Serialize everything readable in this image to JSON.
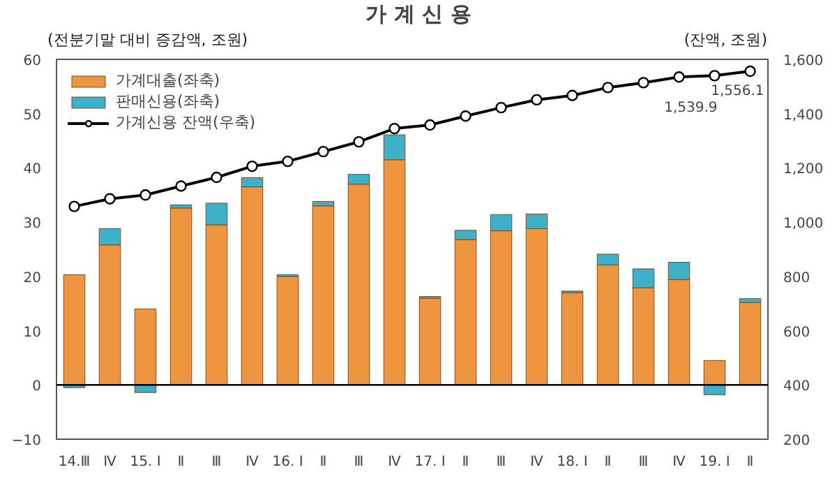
{
  "chart_data": {
    "type": "bar",
    "title": "가 계 신 용",
    "ylabel": "(전분기말 대비 증감액, 조원)",
    "y2label": "(잔액, 조원)",
    "categories": [
      "14.Ⅲ",
      "Ⅳ",
      "15. Ⅰ",
      "Ⅱ",
      "Ⅲ",
      "Ⅳ",
      "16. Ⅰ",
      "Ⅱ",
      "Ⅲ",
      "Ⅳ",
      "17. Ⅰ",
      "Ⅱ",
      "Ⅲ",
      "Ⅳ",
      "18. Ⅰ",
      "Ⅱ",
      "Ⅲ",
      "Ⅳ",
      "19. Ⅰ",
      "Ⅱ"
    ],
    "stacked": true,
    "series": [
      {
        "name": "가계대출(좌축)",
        "color": "#f0953f",
        "values": [
          20.3,
          25.8,
          14.0,
          32.6,
          29.5,
          36.5,
          20.0,
          33.0,
          37.0,
          41.5,
          16.0,
          26.8,
          28.4,
          28.8,
          17.0,
          22.1,
          17.9,
          19.4,
          4.5,
          15.2
        ]
      },
      {
        "name": "판매신용(좌축)",
        "color": "#3fb0c9",
        "values": [
          -0.5,
          3.0,
          -1.4,
          0.6,
          4.0,
          1.7,
          0.3,
          0.8,
          1.8,
          4.6,
          0.3,
          1.7,
          3.0,
          2.7,
          0.3,
          2.0,
          3.5,
          3.2,
          -1.8,
          0.7
        ]
      },
      {
        "name": "가계신용 잔액(우축)",
        "type": "line",
        "axis": "y2",
        "color": "#000000",
        "marker": "circle",
        "values": [
          1058,
          1086,
          1100,
          1133,
          1165,
          1206,
          1224,
          1260,
          1296,
          1345,
          1358,
          1391,
          1422,
          1451,
          1467,
          1496,
          1514,
          1535,
          1539.9,
          1556.1
        ],
        "value_labels": [
          null,
          null,
          null,
          null,
          null,
          null,
          null,
          null,
          null,
          null,
          null,
          null,
          null,
          null,
          null,
          null,
          null,
          null,
          "1,539.9",
          "1,556.1"
        ]
      }
    ],
    "ylim": [
      -10,
      60
    ],
    "yticks": [
      -10,
      0,
      10,
      20,
      30,
      40,
      50,
      60
    ],
    "y2lim": [
      200,
      1600
    ],
    "y2ticks": [
      {
        "value": 200,
        "label": "200"
      },
      {
        "value": 400,
        "label": "400"
      },
      {
        "value": 600,
        "label": "600"
      },
      {
        "value": 800,
        "label": "800"
      },
      {
        "value": 1000,
        "label": "1,000"
      },
      {
        "value": 1200,
        "label": "1,200"
      },
      {
        "value": 1400,
        "label": "1,400"
      },
      {
        "value": 1600,
        "label": "1,600"
      }
    ],
    "ref_lines": [
      {
        "axis": "y",
        "value": 0,
        "color": "#000000"
      }
    ],
    "grid": false,
    "legend": "top left"
  }
}
